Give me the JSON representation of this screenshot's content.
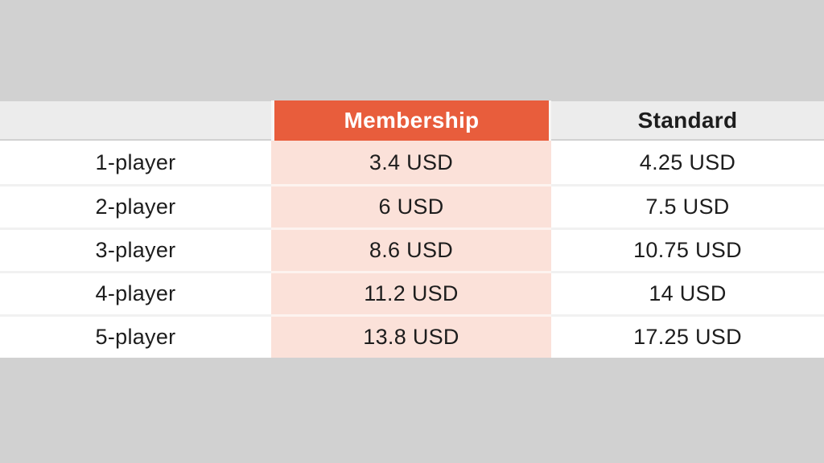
{
  "page": {
    "background_color": "#d1d1d1",
    "title": ""
  },
  "table": {
    "header": {
      "row_label": "",
      "membership": "Membership",
      "standard": "Standard"
    },
    "rows": [
      {
        "label": "1-player",
        "membership": "3.4 USD",
        "standard": "4.25 USD"
      },
      {
        "label": "2-player",
        "membership": "6 USD",
        "standard": "7.5 USD"
      },
      {
        "label": "3-player",
        "membership": "8.6 USD",
        "standard": "10.75 USD"
      },
      {
        "label": "4-player",
        "membership": "11.2 USD",
        "standard": "14 USD"
      },
      {
        "label": "5-player",
        "membership": "13.8 USD",
        "standard": "17.25 USD"
      }
    ],
    "colors": {
      "accent_orange": "#e85d3c",
      "membership_column_pink": "#fbe1d9",
      "header_gray": "#ececec",
      "page_gray": "#d1d1d1",
      "row_white": "#ffffff",
      "separator_gray": "#f1f1f1",
      "separator_pink": "#fdf3ef",
      "text_dark": "#1d1d1d",
      "text_light": "#ffffff"
    }
  },
  "chart_data": {
    "type": "table",
    "title": "",
    "columns": [
      "",
      "Membership",
      "Standard"
    ],
    "categories": [
      "1-player",
      "2-player",
      "3-player",
      "4-player",
      "5-player"
    ],
    "series": [
      {
        "name": "Membership",
        "values": [
          3.4,
          6,
          8.6,
          11.2,
          13.8
        ]
      },
      {
        "name": "Standard",
        "values": [
          4.25,
          7.5,
          10.75,
          14,
          17.25
        ]
      }
    ],
    "unit": "USD",
    "rows": [
      [
        "1-player",
        "3.4 USD",
        "4.25 USD"
      ],
      [
        "2-player",
        "6 USD",
        "7.5 USD"
      ],
      [
        "3-player",
        "8.6 USD",
        "10.75 USD"
      ],
      [
        "4-player",
        "11.2 USD",
        "14 USD"
      ],
      [
        "5-player",
        "13.8 USD",
        "17.25 USD"
      ]
    ],
    "layout_hints": {
      "header_accent_column": "Membership",
      "alignment": "center",
      "grid": "horizontal separators only"
    }
  }
}
